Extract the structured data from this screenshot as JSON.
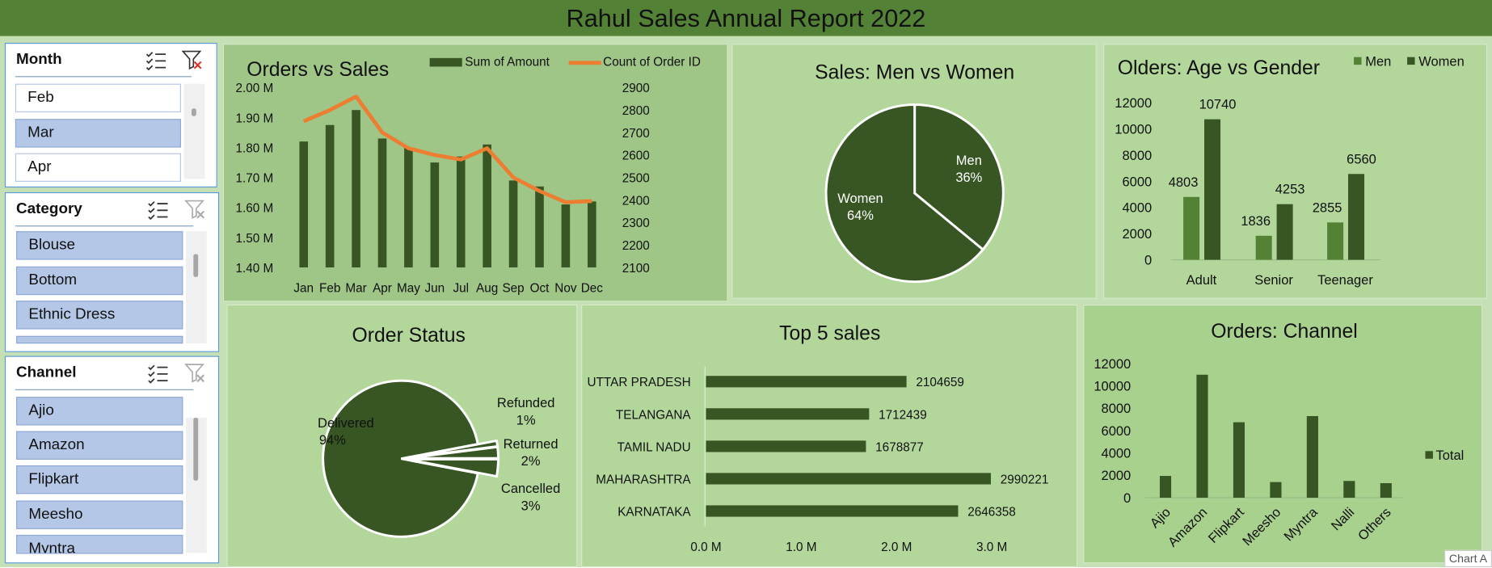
{
  "title": "Rahul Sales Annual Report 2022",
  "colors": {
    "banner": "#538135",
    "dark_green": "#375623",
    "mid_green": "#548235",
    "orange": "#ed7d31",
    "selected": "#b4c7e7"
  },
  "slicers": {
    "month": {
      "header": "Month",
      "items": [
        {
          "label": "Feb",
          "selected": false
        },
        {
          "label": "Mar",
          "selected": true
        },
        {
          "label": "Apr",
          "selected": false
        }
      ],
      "icons": [
        "multi-select-icon",
        "clear-filter-icon"
      ]
    },
    "category": {
      "header": "Category",
      "items": [
        {
          "label": "Blouse",
          "selected": true
        },
        {
          "label": "Bottom",
          "selected": true
        },
        {
          "label": "Ethnic Dress",
          "selected": true
        },
        {
          "label": "",
          "selected": true
        }
      ]
    },
    "channel": {
      "header": "Channel",
      "items": [
        {
          "label": "Ajio",
          "selected": true
        },
        {
          "label": "Amazon",
          "selected": true
        },
        {
          "label": "Flipkart",
          "selected": true
        },
        {
          "label": "Meesho",
          "selected": true
        },
        {
          "label": "Myntra",
          "selected": true
        }
      ]
    }
  },
  "chart_data": [
    {
      "id": "orders_vs_sales",
      "type": "bar+line",
      "title": "Orders vs Sales",
      "categories": [
        "Jan",
        "Feb",
        "Mar",
        "Apr",
        "May",
        "Jun",
        "Jul",
        "Aug",
        "Sep",
        "Oct",
        "Nov",
        "Dec"
      ],
      "series": [
        {
          "name": "Sum of Amount",
          "type": "bar",
          "axis": "left",
          "values": [
            1.82,
            1.875,
            1.925,
            1.83,
            1.8,
            1.75,
            1.77,
            1.81,
            1.69,
            1.67,
            1.61,
            1.62
          ]
        },
        {
          "name": "Count of Order ID",
          "type": "line",
          "axis": "right",
          "values": [
            2750,
            2800,
            2860,
            2700,
            2630,
            2600,
            2580,
            2630,
            2500,
            2440,
            2390,
            2395
          ]
        }
      ],
      "left_ticks": [
        "2.00 M",
        "1.90 M",
        "1.80 M",
        "1.70 M",
        "1.60 M",
        "1.50 M",
        "1.40 M"
      ],
      "ylim": [
        1.4,
        2.0
      ],
      "right_ticks": [
        "2900",
        "2800",
        "2700",
        "2600",
        "2500",
        "2400",
        "2300",
        "2200",
        "2100"
      ],
      "y2lim": [
        2100,
        2900
      ],
      "legend_position": "top-right"
    },
    {
      "id": "men_vs_women",
      "type": "pie",
      "title": "Sales: Men vs Women",
      "slices": [
        {
          "label": "Men",
          "value": 36,
          "display": "36%"
        },
        {
          "label": "Women",
          "value": 64,
          "display": "64%"
        }
      ]
    },
    {
      "id": "age_vs_gender",
      "type": "bar",
      "title": "Olders: Age vs Gender",
      "categories": [
        "Adult",
        "Senior",
        "Teenager"
      ],
      "series": [
        {
          "name": "Men",
          "values": [
            4803,
            1836,
            2855
          ]
        },
        {
          "name": "Women",
          "values": [
            10740,
            4253,
            6560
          ]
        }
      ],
      "ticks": [
        "12000",
        "10000",
        "8000",
        "6000",
        "4000",
        "2000",
        "0"
      ],
      "ylim": [
        0,
        12000
      ],
      "legend_position": "top-right"
    },
    {
      "id": "order_status",
      "type": "pie",
      "title": "Order Status",
      "slices": [
        {
          "label": "Delivered",
          "value": 94,
          "display": "94%"
        },
        {
          "label": "Refunded",
          "value": 1,
          "display": "1%"
        },
        {
          "label": "Returned",
          "value": 2,
          "display": "2%"
        },
        {
          "label": "Cancelled",
          "value": 3,
          "display": "3%"
        }
      ]
    },
    {
      "id": "top5_sales",
      "type": "bar",
      "orientation": "horizontal",
      "title": "Top 5 sales",
      "categories": [
        "UTTAR PRADESH",
        "TELANGANA",
        "TAMIL NADU",
        "MAHARASHTRA",
        "KARNATAKA"
      ],
      "values": [
        2104659,
        1712439,
        1678877,
        2990221,
        2646358
      ],
      "x_ticks": [
        "0.0 M",
        "1.0 M",
        "2.0 M",
        "3.0 M"
      ],
      "xlim": [
        0,
        3200000
      ]
    },
    {
      "id": "orders_channel",
      "type": "bar",
      "title": "Orders: Channel",
      "categories": [
        "Ajio",
        "Amazon",
        "Flipkart",
        "Meesho",
        "Myntra",
        "Nalli",
        "Others"
      ],
      "series": [
        {
          "name": "Total",
          "values": [
            1950,
            11000,
            6750,
            1400,
            7300,
            1500,
            1300
          ]
        }
      ],
      "ticks": [
        "12000",
        "10000",
        "8000",
        "6000",
        "4000",
        "2000",
        "0"
      ],
      "ylim": [
        0,
        12000
      ],
      "legend_position": "right"
    }
  ],
  "status_text": "Chart A"
}
